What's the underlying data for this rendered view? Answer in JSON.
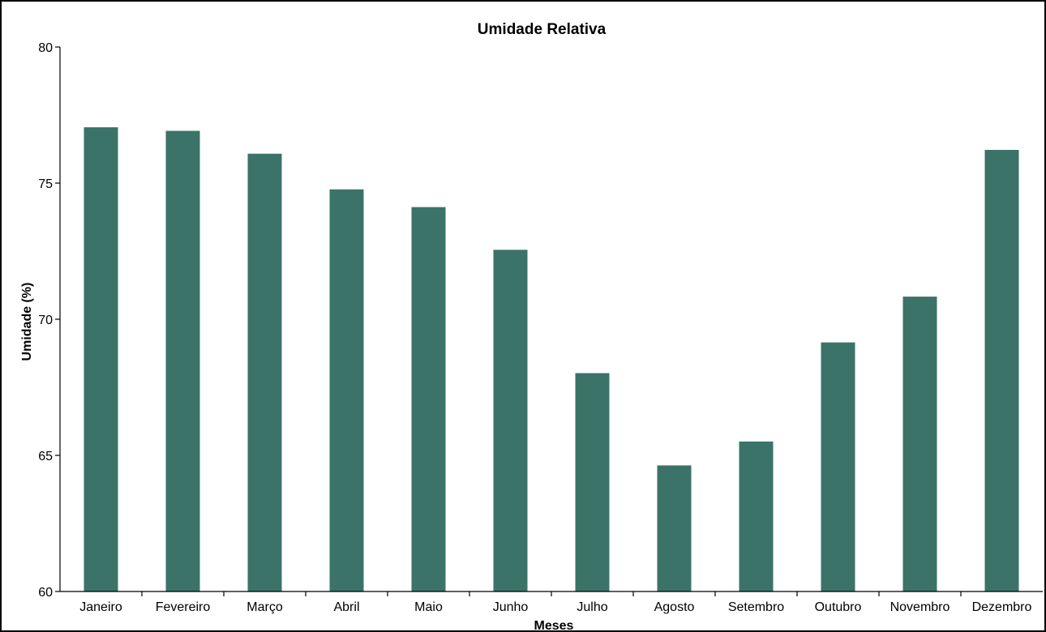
{
  "chart_data": {
    "type": "bar",
    "title": "Umidade Relativa",
    "xlabel": "Meses",
    "ylabel": "Umidade (%)",
    "categories": [
      "Janeiro",
      "Fevereiro",
      "Março",
      "Abril",
      "Maio",
      "Junho",
      "Julho",
      "Agosto",
      "Setembro",
      "Outubro",
      "Novembro",
      "Dezembro"
    ],
    "values": [
      77.05,
      76.92,
      76.08,
      74.77,
      74.12,
      72.55,
      68.02,
      64.63,
      65.51,
      69.15,
      70.83,
      76.22
    ],
    "ylim": [
      60,
      80
    ],
    "yticks": [
      60,
      65,
      70,
      75,
      80
    ],
    "bar_color": "#3b7368",
    "grid": false,
    "legend": "none"
  }
}
